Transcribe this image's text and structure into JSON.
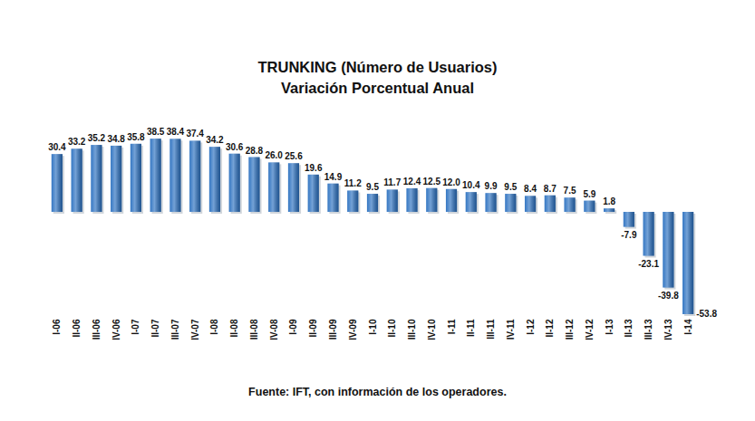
{
  "chart_data": {
    "type": "bar",
    "title": "TRUNKING (Número de Usuarios)",
    "subtitle": "Variación Porcentual Anual",
    "source": "Fuente: IFT, con información de los operadores.",
    "categories": [
      "I-06",
      "II-06",
      "III-06",
      "IV-06",
      "I-07",
      "II-07",
      "III-07",
      "IV-07",
      "I-08",
      "II-08",
      "III-08",
      "IV-08",
      "I-09",
      "II-09",
      "III-09",
      "IV-09",
      "I-10",
      "II-10",
      "III-10",
      "IV-10",
      "I-11",
      "II-11",
      "III-11",
      "IV-11",
      "I-12",
      "II-12",
      "III-12",
      "IV-12",
      "I-13",
      "II-13",
      "III-13",
      "IV-13",
      "I-14"
    ],
    "values": [
      30.4,
      33.2,
      35.2,
      34.8,
      35.8,
      38.5,
      38.4,
      37.4,
      34.2,
      30.6,
      28.8,
      26.0,
      25.6,
      19.6,
      14.9,
      11.2,
      9.5,
      11.7,
      12.4,
      12.5,
      12.0,
      10.4,
      9.9,
      9.5,
      8.4,
      8.7,
      7.5,
      5.9,
      1.8,
      -7.9,
      -23.1,
      -39.8,
      -53.8
    ],
    "value_labels": [
      "30.4",
      "33.2",
      "35.2",
      "34.8",
      "35.8",
      "38.5",
      "38.4",
      "37.4",
      "34.2",
      "30.6",
      "28.8",
      "26.0",
      "25.6",
      "19.6",
      "14.9",
      "11.2",
      "9.5",
      "11.7",
      "12.4",
      "12.5",
      "12.0",
      "10.4",
      "9.9",
      "9.5",
      "8.4",
      "8.7",
      "7.5",
      "5.9",
      "1.8",
      "-7.9",
      "-23.1",
      "-39.8",
      "-53.8"
    ],
    "color": "#2a70c0",
    "ylim": [
      -55,
      45
    ],
    "data_labels": true,
    "tick_labels": "x",
    "grid": false
  }
}
